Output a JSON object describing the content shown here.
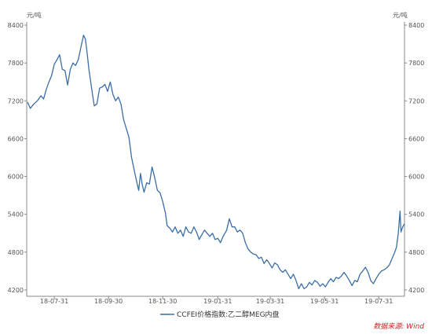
{
  "chart_data": {
    "type": "line",
    "title": "",
    "unit_left": "元/吨",
    "unit_right": "元/吨",
    "xlabel": "",
    "ylabel": "",
    "ylim": [
      4100,
      8450
    ],
    "y_ticks": [
      4200,
      4800,
      5400,
      6000,
      6600,
      7200,
      7800,
      8400
    ],
    "y_tick_labels": [
      "4200",
      "4800",
      "5400",
      "6000",
      "6600",
      "7200",
      "7800",
      "8400"
    ],
    "x_range": [
      "2018-06-30",
      "2019-08-29"
    ],
    "x_ticks": [
      "2018-07-31",
      "2018-09-30",
      "2018-11-30",
      "2019-01-31",
      "2019-03-31",
      "2019-05-31",
      "2019-07-31"
    ],
    "x_tick_labels": [
      "18-07-31",
      "18-09-30",
      "18-11-30",
      "19-01-31",
      "19-03-31",
      "19-05-31",
      "19-07-31"
    ],
    "grid": false,
    "legend_position": "bottom-center",
    "source": "数据来源: Wind",
    "colors": {
      "line": "#3a6ea5",
      "axis": "#888888",
      "source": "#cc2222"
    },
    "series": [
      {
        "name": "CCFEI价格指数:乙二醇MEG内盘",
        "points": [
          [
            "2018-07-01",
            7180
          ],
          [
            "2018-07-04",
            7080
          ],
          [
            "2018-07-08",
            7150
          ],
          [
            "2018-07-12",
            7200
          ],
          [
            "2018-07-16",
            7280
          ],
          [
            "2018-07-19",
            7230
          ],
          [
            "2018-07-22",
            7380
          ],
          [
            "2018-07-25",
            7500
          ],
          [
            "2018-07-28",
            7600
          ],
          [
            "2018-07-31",
            7780
          ],
          [
            "2018-08-03",
            7850
          ],
          [
            "2018-08-06",
            7930
          ],
          [
            "2018-08-09",
            7700
          ],
          [
            "2018-08-12",
            7680
          ],
          [
            "2018-08-15",
            7450
          ],
          [
            "2018-08-18",
            7700
          ],
          [
            "2018-08-21",
            7800
          ],
          [
            "2018-08-24",
            7760
          ],
          [
            "2018-08-27",
            7850
          ],
          [
            "2018-08-30",
            8050
          ],
          [
            "2018-09-02",
            8240
          ],
          [
            "2018-09-04",
            8180
          ],
          [
            "2018-09-06",
            7950
          ],
          [
            "2018-09-08",
            7700
          ],
          [
            "2018-09-10",
            7500
          ],
          [
            "2018-09-12",
            7300
          ],
          [
            "2018-09-14",
            7120
          ],
          [
            "2018-09-17",
            7150
          ],
          [
            "2018-09-20",
            7400
          ],
          [
            "2018-09-23",
            7420
          ],
          [
            "2018-09-26",
            7460
          ],
          [
            "2018-09-29",
            7350
          ],
          [
            "2018-10-02",
            7500
          ],
          [
            "2018-10-05",
            7300
          ],
          [
            "2018-10-08",
            7200
          ],
          [
            "2018-10-11",
            7260
          ],
          [
            "2018-10-14",
            7150
          ],
          [
            "2018-10-17",
            6900
          ],
          [
            "2018-10-20",
            6760
          ],
          [
            "2018-10-23",
            6620
          ],
          [
            "2018-10-26",
            6300
          ],
          [
            "2018-10-29",
            6100
          ],
          [
            "2018-11-01",
            5900
          ],
          [
            "2018-11-03",
            5780
          ],
          [
            "2018-11-05",
            6050
          ],
          [
            "2018-11-07",
            5870
          ],
          [
            "2018-11-09",
            5750
          ],
          [
            "2018-11-12",
            5900
          ],
          [
            "2018-11-15",
            5880
          ],
          [
            "2018-11-18",
            6150
          ],
          [
            "2018-11-21",
            5980
          ],
          [
            "2018-11-24",
            5780
          ],
          [
            "2018-11-27",
            5740
          ],
          [
            "2018-11-30",
            5600
          ],
          [
            "2018-12-03",
            5420
          ],
          [
            "2018-12-05",
            5220
          ],
          [
            "2018-12-08",
            5180
          ],
          [
            "2018-12-11",
            5120
          ],
          [
            "2018-12-14",
            5200
          ],
          [
            "2018-12-17",
            5100
          ],
          [
            "2018-12-20",
            5150
          ],
          [
            "2018-12-23",
            5050
          ],
          [
            "2018-12-26",
            5200
          ],
          [
            "2018-12-29",
            5120
          ],
          [
            "2019-01-01",
            5100
          ],
          [
            "2019-01-04",
            5200
          ],
          [
            "2019-01-07",
            5120
          ],
          [
            "2019-01-10",
            5000
          ],
          [
            "2019-01-13",
            5080
          ],
          [
            "2019-01-16",
            5150
          ],
          [
            "2019-01-19",
            5100
          ],
          [
            "2019-01-22",
            5050
          ],
          [
            "2019-01-25",
            5100
          ],
          [
            "2019-01-28",
            5000
          ],
          [
            "2019-01-31",
            5020
          ],
          [
            "2019-02-03",
            4950
          ],
          [
            "2019-02-06",
            5050
          ],
          [
            "2019-02-10",
            5150
          ],
          [
            "2019-02-13",
            5330
          ],
          [
            "2019-02-16",
            5200
          ],
          [
            "2019-02-19",
            5200
          ],
          [
            "2019-02-22",
            5120
          ],
          [
            "2019-02-25",
            5150
          ],
          [
            "2019-02-28",
            5100
          ],
          [
            "2019-03-03",
            4950
          ],
          [
            "2019-03-06",
            4850
          ],
          [
            "2019-03-09",
            4800
          ],
          [
            "2019-03-12",
            4770
          ],
          [
            "2019-03-15",
            4760
          ],
          [
            "2019-03-18",
            4700
          ],
          [
            "2019-03-21",
            4720
          ],
          [
            "2019-03-24",
            4620
          ],
          [
            "2019-03-27",
            4680
          ],
          [
            "2019-03-30",
            4620
          ],
          [
            "2019-04-02",
            4550
          ],
          [
            "2019-04-05",
            4630
          ],
          [
            "2019-04-08",
            4600
          ],
          [
            "2019-04-11",
            4520
          ],
          [
            "2019-04-14",
            4480
          ],
          [
            "2019-04-17",
            4520
          ],
          [
            "2019-04-20",
            4450
          ],
          [
            "2019-04-23",
            4380
          ],
          [
            "2019-04-26",
            4450
          ],
          [
            "2019-04-29",
            4350
          ],
          [
            "2019-05-02",
            4220
          ],
          [
            "2019-05-05",
            4300
          ],
          [
            "2019-05-08",
            4220
          ],
          [
            "2019-05-11",
            4250
          ],
          [
            "2019-05-14",
            4320
          ],
          [
            "2019-05-17",
            4280
          ],
          [
            "2019-05-20",
            4350
          ],
          [
            "2019-05-23",
            4320
          ],
          [
            "2019-05-26",
            4260
          ],
          [
            "2019-05-29",
            4300
          ],
          [
            "2019-06-01",
            4250
          ],
          [
            "2019-06-04",
            4320
          ],
          [
            "2019-06-07",
            4380
          ],
          [
            "2019-06-10",
            4330
          ],
          [
            "2019-06-13",
            4400
          ],
          [
            "2019-06-16",
            4380
          ],
          [
            "2019-06-19",
            4420
          ],
          [
            "2019-06-22",
            4480
          ],
          [
            "2019-06-25",
            4420
          ],
          [
            "2019-06-28",
            4350
          ],
          [
            "2019-07-01",
            4270
          ],
          [
            "2019-07-04",
            4350
          ],
          [
            "2019-07-07",
            4330
          ],
          [
            "2019-07-10",
            4450
          ],
          [
            "2019-07-13",
            4500
          ],
          [
            "2019-07-16",
            4560
          ],
          [
            "2019-07-19",
            4480
          ],
          [
            "2019-07-22",
            4350
          ],
          [
            "2019-07-25",
            4300
          ],
          [
            "2019-07-28",
            4380
          ],
          [
            "2019-07-31",
            4450
          ],
          [
            "2019-08-03",
            4500
          ],
          [
            "2019-08-06",
            4520
          ],
          [
            "2019-08-09",
            4550
          ],
          [
            "2019-08-12",
            4600
          ],
          [
            "2019-08-15",
            4700
          ],
          [
            "2019-08-18",
            4800
          ],
          [
            "2019-08-20",
            4880
          ],
          [
            "2019-08-22",
            5100
          ],
          [
            "2019-08-24",
            5450
          ],
          [
            "2019-08-25",
            5120
          ],
          [
            "2019-08-27",
            5200
          ],
          [
            "2019-08-29",
            5250
          ]
        ]
      }
    ]
  }
}
